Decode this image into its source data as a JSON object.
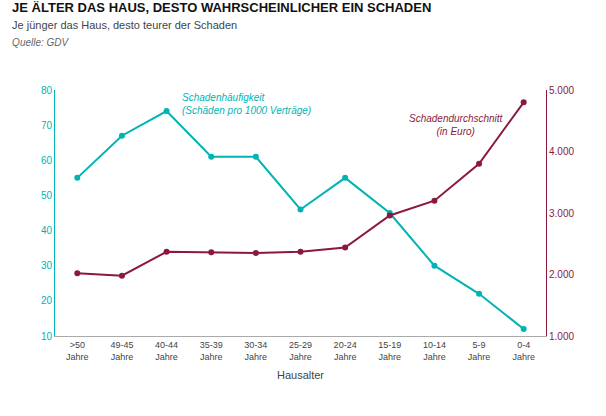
{
  "chart_data": {
    "type": "line",
    "title": "JE ÄLTER DAS HAUS, DESTO WAHRSCHEINLICHER EIN SCHADEN",
    "subtitle": "Je jünger das Haus, desto teurer der Schaden",
    "source": "Quelle: GDV",
    "x_label": "Hausalter",
    "categories": [
      ">50\nJahre",
      "49-45\nJahre",
      "40-44\nJahre",
      "35-39\nJahre",
      "30-34\nJahre",
      "25-29\nJahre",
      "20-24\nJahre",
      "15-19\nJahre",
      "10-14\nJahre",
      "5-9\nJahre",
      "0-4\nJahre"
    ],
    "series": [
      {
        "color": "#00B4B4",
        "axis": "y",
        "marker": "circle",
        "line_style": "solid",
        "values": [
          55,
          67,
          74,
          61,
          61,
          46,
          55,
          45,
          30,
          22,
          12
        ]
      },
      {
        "color": "#8B1A3A",
        "axis": "y2",
        "marker": "circle",
        "line_style": "solid",
        "values": [
          2020,
          1980,
          2370,
          2360,
          2350,
          2370,
          2440,
          2960,
          3200,
          3800,
          4800
        ]
      }
    ],
    "annotations": [
      {
        "text": "Schadenhäufigkeit\n(Schäden pro 1000 Verträge)",
        "x": 2.3,
        "y": 72,
        "axis": "y",
        "color": "#00B4B4"
      },
      {
        "text": "Schadendurchschnitt\n(in Euro)",
        "x": 8.5,
        "y": 4200,
        "axis": "y2",
        "color": "#8B1A3A"
      }
    ],
    "ylim": [
      10,
      80
    ],
    "yticks": [
      10,
      20,
      30,
      40,
      50,
      60,
      70,
      80
    ],
    "y2lim": [
      1000,
      5000
    ],
    "y2ticks": [
      {
        "value": 1000,
        "label": "1.000"
      },
      {
        "value": 2000,
        "label": "2.000"
      },
      {
        "value": 3000,
        "label": "3.000"
      },
      {
        "value": 4000,
        "label": "4.000"
      },
      {
        "value": 5000,
        "label": "5.000"
      }
    ],
    "grid": false
  }
}
